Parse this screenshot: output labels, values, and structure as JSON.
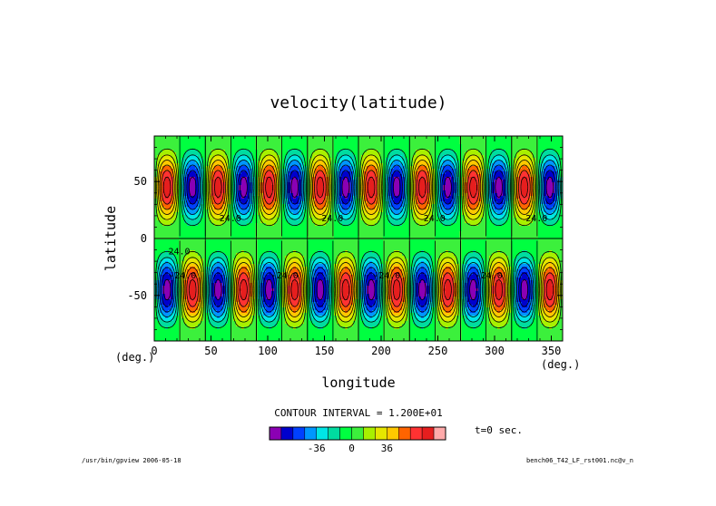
{
  "chart_data": {
    "type": "heatmap",
    "title": "velocity(latitude)",
    "xlabel": "longitude",
    "ylabel": "latitude",
    "x_unit": "(deg.)",
    "y_unit": "(deg.)",
    "xlim": [
      0,
      360
    ],
    "ylim": [
      -90,
      90
    ],
    "x_ticks": [
      0,
      50,
      100,
      150,
      200,
      250,
      300,
      350
    ],
    "y_ticks": [
      -50,
      0,
      50
    ],
    "field": {
      "form": "A * sin(8 * lon) * sin(2 * lat)^2 * sign(lat)",
      "wavenumber": 8,
      "amplitude": 80
    },
    "contour_interval_text": "CONTOUR INTERVAL = 1.200E+01",
    "contour_interval": 12,
    "contour_labels": [
      "24.0",
      "24.0",
      "24.0",
      "24.0",
      "24.0",
      "-24.0",
      "-24.0",
      "-24.0",
      "-24.0"
    ],
    "colorbar": {
      "colors": [
        "#8b00b4",
        "#0000cd",
        "#0040ff",
        "#0096ff",
        "#00e6e6",
        "#00dca0",
        "#00ff40",
        "#3cf03c",
        "#a8f000",
        "#e6e600",
        "#ffc800",
        "#ff6400",
        "#ff3232",
        "#e61e1e",
        "#ffaaaa"
      ],
      "tick_labels": [
        "-36",
        "0",
        "36"
      ],
      "tick_values": [
        -36,
        0,
        36
      ],
      "range": [
        -84,
        96
      ]
    },
    "time_text": "t=0 sec.",
    "footer_left": "/usr/bin/gpview  2006-05-18",
    "footer_right": "bench06_T42_LF_rst001.nc@v_n"
  }
}
